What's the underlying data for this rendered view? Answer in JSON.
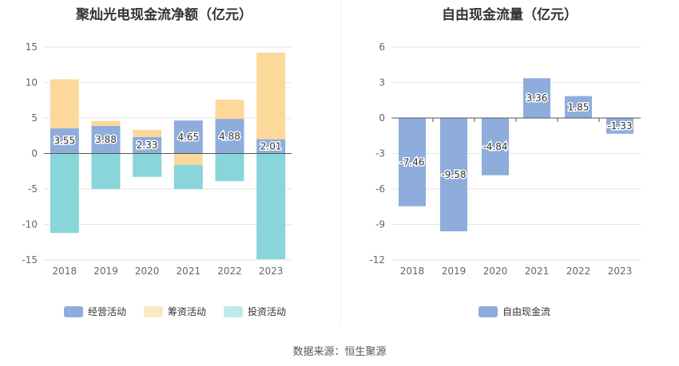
{
  "source": "数据来源：恒生聚源",
  "chart_data": [
    {
      "type": "bar",
      "stacked": true,
      "title": "聚灿光电现金流净额（亿元）",
      "categories": [
        "2018",
        "2019",
        "2020",
        "2021",
        "2022",
        "2023"
      ],
      "ylim": [
        -15,
        15
      ],
      "yticks": [
        15,
        10,
        5,
        0,
        -5,
        -10,
        -15
      ],
      "grid": true,
      "legend_position": "bottom",
      "series": [
        {
          "name": "经营活动",
          "color": "#8eaddc",
          "values": [
            3.55,
            3.88,
            2.33,
            4.65,
            4.88,
            2.01
          ],
          "show_labels": true
        },
        {
          "name": "筹资活动",
          "color": "#fdd89b",
          "values": [
            6.9,
            0.7,
            1.0,
            -1.6,
            2.7,
            12.2
          ],
          "show_labels": false
        },
        {
          "name": "投资活动",
          "color": "#88d6d9",
          "values": [
            -11.2,
            -5.0,
            -3.3,
            -3.4,
            -3.9,
            -14.9
          ],
          "show_labels": false
        }
      ]
    },
    {
      "type": "bar",
      "title": "自由现金流量（亿元）",
      "categories": [
        "2018",
        "2019",
        "2020",
        "2021",
        "2022",
        "2023"
      ],
      "ylim": [
        -12,
        6
      ],
      "yticks": [
        6,
        3,
        0,
        -3,
        -6,
        -9,
        -12
      ],
      "grid": true,
      "legend_position": "bottom",
      "series": [
        {
          "name": "自由现金流",
          "color": "#8eaddc",
          "values": [
            -7.46,
            -9.58,
            -4.84,
            3.36,
            1.85,
            -1.33
          ],
          "show_labels": true
        }
      ]
    }
  ]
}
